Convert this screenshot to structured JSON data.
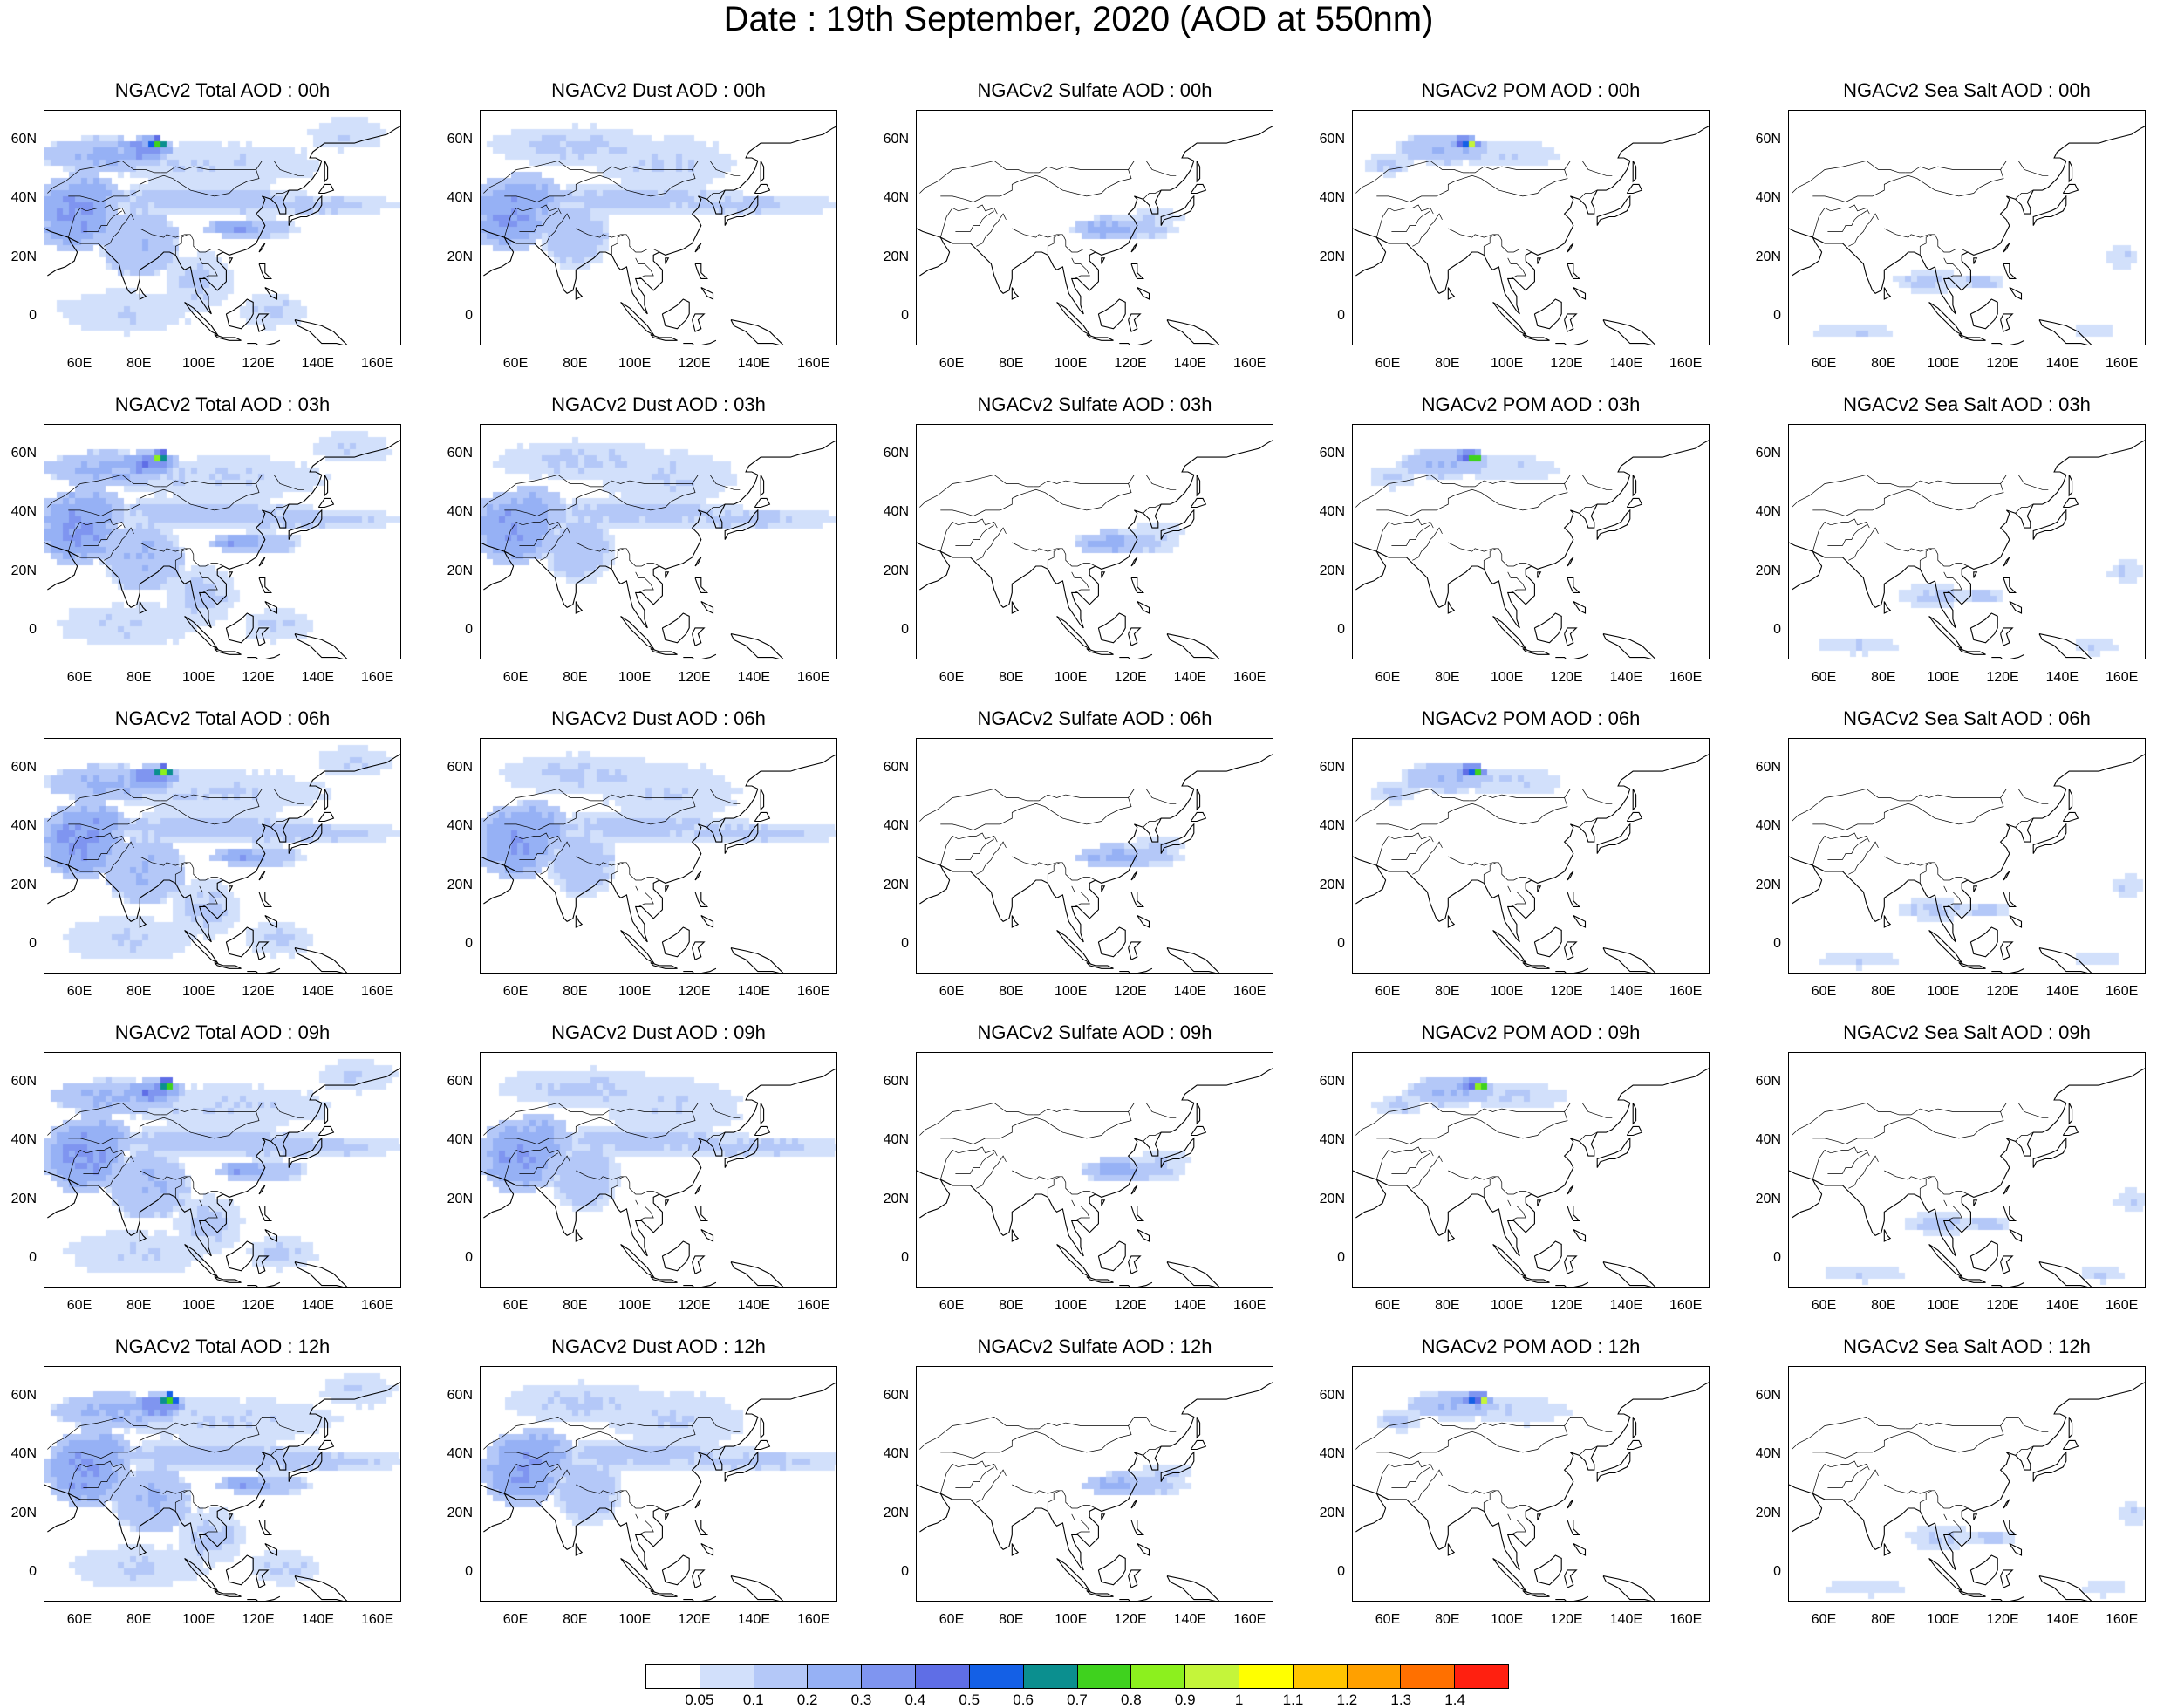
{
  "title": "Date : 19th September, 2020 (AOD at 550nm)",
  "x_ticks": [
    "60E",
    "80E",
    "100E",
    "120E",
    "140E",
    "160E"
  ],
  "y_ticks": [
    "60N",
    "40N",
    "20N",
    "0"
  ],
  "panels": [
    {
      "title": "NGACv2 Total AOD : 00h",
      "species": "total",
      "hour": 0
    },
    {
      "title": "NGACv2 Dust AOD : 00h",
      "species": "dust",
      "hour": 0
    },
    {
      "title": "NGACv2 Sulfate AOD : 00h",
      "species": "sulfate",
      "hour": 0
    },
    {
      "title": "NGACv2 POM AOD : 00h",
      "species": "pom",
      "hour": 0
    },
    {
      "title": "NGACv2 Sea Salt AOD : 00h",
      "species": "seasalt",
      "hour": 0
    },
    {
      "title": "NGACv2 Total AOD : 03h",
      "species": "total",
      "hour": 3
    },
    {
      "title": "NGACv2 Dust AOD : 03h",
      "species": "dust",
      "hour": 3
    },
    {
      "title": "NGACv2 Sulfate AOD : 03h",
      "species": "sulfate",
      "hour": 3
    },
    {
      "title": "NGACv2 POM AOD : 03h",
      "species": "pom",
      "hour": 3
    },
    {
      "title": "NGACv2 Sea Salt AOD : 03h",
      "species": "seasalt",
      "hour": 3
    },
    {
      "title": "NGACv2 Total AOD : 06h",
      "species": "total",
      "hour": 6
    },
    {
      "title": "NGACv2 Dust AOD : 06h",
      "species": "dust",
      "hour": 6
    },
    {
      "title": "NGACv2 Sulfate AOD : 06h",
      "species": "sulfate",
      "hour": 6
    },
    {
      "title": "NGACv2 POM AOD : 06h",
      "species": "pom",
      "hour": 6
    },
    {
      "title": "NGACv2 Sea Salt AOD : 06h",
      "species": "seasalt",
      "hour": 6
    },
    {
      "title": "NGACv2 Total AOD : 09h",
      "species": "total",
      "hour": 9
    },
    {
      "title": "NGACv2 Dust AOD : 09h",
      "species": "dust",
      "hour": 9
    },
    {
      "title": "NGACv2 Sulfate AOD : 09h",
      "species": "sulfate",
      "hour": 9
    },
    {
      "title": "NGACv2 POM AOD : 09h",
      "species": "pom",
      "hour": 9
    },
    {
      "title": "NGACv2 Sea Salt  AOD : 09h",
      "species": "seasalt",
      "hour": 9
    },
    {
      "title": "NGACv2 Total AOD  : 12h",
      "species": "total",
      "hour": 12
    },
    {
      "title": "NGACv2 Dust AOD : 12h",
      "species": "dust",
      "hour": 12
    },
    {
      "title": "NGACv2 Sulfate AOD : 12h",
      "species": "sulfate",
      "hour": 12
    },
    {
      "title": "NGACv2 POM  AOD : 12h",
      "species": "pom",
      "hour": 12
    },
    {
      "title": "NGACv2 Sea Salt  AOD : 12h",
      "species": "seasalt",
      "hour": 12
    }
  ],
  "colorbar": {
    "labels": [
      "0.05",
      "0.1",
      "0.2",
      "0.3",
      "0.4",
      "0.5",
      "0.6",
      "0.7",
      "0.8",
      "0.9",
      "1",
      "1.1",
      "1.2",
      "1.3",
      "1.4"
    ],
    "colors": [
      "#ffffff",
      "#d2e0fb",
      "#b4c8f8",
      "#96b1f5",
      "#7f95f0",
      "#5f6ee6",
      "#1460e6",
      "#0b8f8f",
      "#3fd21e",
      "#8cf01e",
      "#c4f53a",
      "#ffff00",
      "#ffc400",
      "#ffa000",
      "#ff7000",
      "#ff2010"
    ]
  }
}
